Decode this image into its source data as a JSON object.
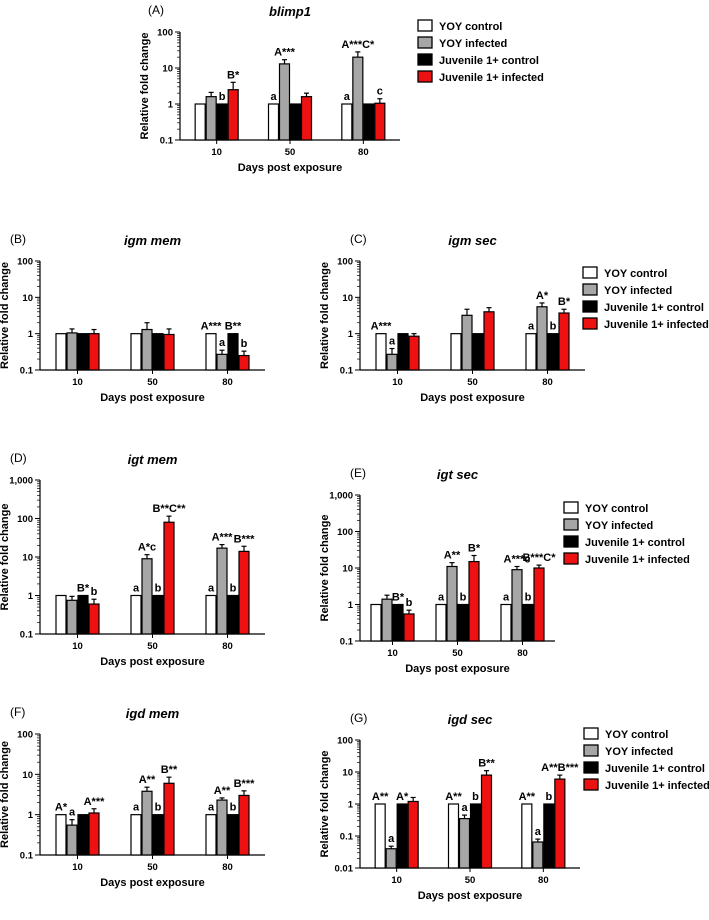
{
  "colors": {
    "yoy_control": "#ffffff",
    "yoy_infected": "#a6a6a6",
    "juv_control": "#000000",
    "juv_infected": "#ee1111"
  },
  "chart_data": [
    {
      "id": "A",
      "panel_label": "(A)",
      "type": "bar",
      "title": "blimp1",
      "xlabel": "Days post exposure",
      "ylabel": "Relative fold change",
      "yscale": "log",
      "ylim": [
        0.1,
        100
      ],
      "yticks": [
        "0.1",
        "1",
        "10",
        "100"
      ],
      "categories": [
        "10",
        "50",
        "80"
      ],
      "legend": true,
      "series": [
        {
          "name": "YOY control",
          "color_key": "yoy_control",
          "values": [
            1,
            1,
            1
          ],
          "errors": [
            0,
            0,
            0
          ]
        },
        {
          "name": "YOY infected",
          "color_key": "yoy_infected",
          "values": [
            1.6,
            13,
            20
          ],
          "errors": [
            0.5,
            4,
            8
          ]
        },
        {
          "name": "Juvenile 1+ control",
          "color_key": "juv_control",
          "values": [
            1,
            1,
            1
          ],
          "errors": [
            0,
            0,
            0
          ]
        },
        {
          "name": "Juvenile 1+ infected",
          "color_key": "juv_infected",
          "values": [
            2.5,
            1.6,
            1.05
          ],
          "errors": [
            1.5,
            0.4,
            0.35
          ]
        }
      ],
      "annotations": [
        {
          "text": "b",
          "category": 0,
          "series": 2
        },
        {
          "text": "B*",
          "category": 0,
          "series": 3
        },
        {
          "text": "a",
          "category": 1,
          "series": 0
        },
        {
          "text": "A***",
          "category": 1,
          "series": 1
        },
        {
          "text": "a",
          "category": 2,
          "series": 0
        },
        {
          "text": "A***C*",
          "category": 2,
          "series": 1
        },
        {
          "text": "c",
          "category": 2,
          "series": 3
        }
      ]
    },
    {
      "id": "B",
      "panel_label": "(B)",
      "type": "bar",
      "title": "igm mem",
      "xlabel": "Days post exposure",
      "ylabel": "Relative fold change",
      "yscale": "log",
      "ylim": [
        0.1,
        100
      ],
      "yticks": [
        "0.1",
        "1",
        "10",
        "100"
      ],
      "categories": [
        "10",
        "50",
        "80"
      ],
      "legend": false,
      "series": [
        {
          "name": "YOY control",
          "color_key": "yoy_control",
          "values": [
            1,
            1,
            1
          ],
          "errors": [
            0,
            0,
            0
          ]
        },
        {
          "name": "YOY infected",
          "color_key": "yoy_infected",
          "values": [
            1.05,
            1.3,
            0.27
          ],
          "errors": [
            0.3,
            0.7,
            0.08
          ]
        },
        {
          "name": "Juvenile 1+ control",
          "color_key": "juv_control",
          "values": [
            1,
            1,
            1
          ],
          "errors": [
            0,
            0,
            0
          ]
        },
        {
          "name": "Juvenile 1+ infected",
          "color_key": "juv_infected",
          "values": [
            1.0,
            0.95,
            0.25
          ],
          "errors": [
            0.3,
            0.4,
            0.08
          ]
        }
      ],
      "annotations": [
        {
          "text": "A***",
          "category": 2,
          "series": 0
        },
        {
          "text": "a",
          "category": 2,
          "series": 1
        },
        {
          "text": "B**",
          "category": 2,
          "series": 2
        },
        {
          "text": "b",
          "category": 2,
          "series": 3
        }
      ]
    },
    {
      "id": "C",
      "panel_label": "(C)",
      "type": "bar",
      "title": "igm sec",
      "xlabel": "Days post exposure",
      "ylabel": "Relative fold change",
      "yscale": "log",
      "ylim": [
        0.1,
        100
      ],
      "yticks": [
        "0.1",
        "1",
        "10",
        "100"
      ],
      "categories": [
        "10",
        "50",
        "80"
      ],
      "legend": true,
      "series": [
        {
          "name": "YOY control",
          "color_key": "yoy_control",
          "values": [
            1,
            1,
            1
          ],
          "errors": [
            0,
            0,
            0
          ]
        },
        {
          "name": "YOY infected",
          "color_key": "yoy_infected",
          "values": [
            0.27,
            3.2,
            5.5
          ],
          "errors": [
            0.12,
            1.5,
            1.5
          ]
        },
        {
          "name": "Juvenile 1+ control",
          "color_key": "juv_control",
          "values": [
            1,
            1,
            1
          ],
          "errors": [
            0,
            0,
            0
          ]
        },
        {
          "name": "Juvenile 1+ infected",
          "color_key": "juv_infected",
          "values": [
            0.85,
            4.0,
            3.7
          ],
          "errors": [
            0.15,
            1.2,
            1.0
          ]
        }
      ],
      "annotations": [
        {
          "text": "A***",
          "category": 0,
          "series": 0
        },
        {
          "text": "a",
          "category": 0,
          "series": 1
        },
        {
          "text": "a",
          "category": 2,
          "series": 0
        },
        {
          "text": "A*",
          "category": 2,
          "series": 1
        },
        {
          "text": "b",
          "category": 2,
          "series": 2
        },
        {
          "text": "B*",
          "category": 2,
          "series": 3
        }
      ]
    },
    {
      "id": "D",
      "panel_label": "(D)",
      "type": "bar",
      "title": "igt mem",
      "xlabel": "Days post exposure",
      "ylabel": "Relative fold change",
      "yscale": "log",
      "ylim": [
        0.1,
        1000
      ],
      "yticks": [
        "0.1",
        "1",
        "10",
        "100",
        "1,000"
      ],
      "categories": [
        "10",
        "50",
        "80"
      ],
      "legend": false,
      "series": [
        {
          "name": "YOY control",
          "color_key": "yoy_control",
          "values": [
            1,
            1,
            1
          ],
          "errors": [
            0,
            0,
            0
          ]
        },
        {
          "name": "YOY infected",
          "color_key": "yoy_infected",
          "values": [
            0.75,
            9,
            17
          ],
          "errors": [
            0.2,
            2.5,
            4
          ]
        },
        {
          "name": "Juvenile 1+ control",
          "color_key": "juv_control",
          "values": [
            1,
            1,
            1
          ],
          "errors": [
            0,
            0,
            0
          ]
        },
        {
          "name": "Juvenile 1+ infected",
          "color_key": "juv_infected",
          "values": [
            0.6,
            80,
            14
          ],
          "errors": [
            0.2,
            35,
            5
          ]
        }
      ],
      "annotations": [
        {
          "text": "B*",
          "category": 0,
          "series": 2
        },
        {
          "text": "b",
          "category": 0,
          "series": 3
        },
        {
          "text": "a",
          "category": 1,
          "series": 0
        },
        {
          "text": "A*c",
          "category": 1,
          "series": 1
        },
        {
          "text": "b",
          "category": 1,
          "series": 2
        },
        {
          "text": "B**C**",
          "category": 1,
          "series": 3
        },
        {
          "text": "a",
          "category": 2,
          "series": 0
        },
        {
          "text": "A***",
          "category": 2,
          "series": 1
        },
        {
          "text": "b",
          "category": 2,
          "series": 2
        },
        {
          "text": "B***",
          "category": 2,
          "series": 3
        }
      ]
    },
    {
      "id": "E",
      "panel_label": "(E)",
      "type": "bar",
      "title": "igt sec",
      "xlabel": "Days post exposure",
      "ylabel": "Relative fold change",
      "yscale": "log",
      "ylim": [
        0.1,
        1000
      ],
      "yticks": [
        "0.1",
        "1",
        "10",
        "100",
        "1,000"
      ],
      "categories": [
        "10",
        "50",
        "80"
      ],
      "legend": true,
      "series": [
        {
          "name": "YOY control",
          "color_key": "yoy_control",
          "values": [
            1,
            1,
            1
          ],
          "errors": [
            0,
            0,
            0
          ]
        },
        {
          "name": "YOY infected",
          "color_key": "yoy_infected",
          "values": [
            1.4,
            11,
            9
          ],
          "errors": [
            0.4,
            3,
            2
          ]
        },
        {
          "name": "Juvenile 1+ control",
          "color_key": "juv_control",
          "values": [
            1,
            1,
            1
          ],
          "errors": [
            0,
            0,
            0
          ]
        },
        {
          "name": "Juvenile 1+ infected",
          "color_key": "juv_infected",
          "values": [
            0.55,
            15,
            10
          ],
          "errors": [
            0.15,
            7,
            2
          ]
        }
      ],
      "annotations": [
        {
          "text": "B*",
          "category": 0,
          "series": 2
        },
        {
          "text": "b",
          "category": 0,
          "series": 3
        },
        {
          "text": "a",
          "category": 1,
          "series": 0
        },
        {
          "text": "A**",
          "category": 1,
          "series": 1
        },
        {
          "text": "b",
          "category": 1,
          "series": 2
        },
        {
          "text": "B*",
          "category": 1,
          "series": 3
        },
        {
          "text": "a",
          "category": 2,
          "series": 0
        },
        {
          "text": "A***c",
          "category": 2,
          "series": 1
        },
        {
          "text": "b",
          "category": 2,
          "series": 2
        },
        {
          "text": "B***C*",
          "category": 2,
          "series": 3
        }
      ]
    },
    {
      "id": "F",
      "panel_label": "(F)",
      "type": "bar",
      "title": "igd mem",
      "xlabel": "Days post exposure",
      "ylabel": "Relative fold change",
      "yscale": "log",
      "ylim": [
        0.1,
        100
      ],
      "yticks": [
        "0.1",
        "1",
        "10",
        "100"
      ],
      "categories": [
        "10",
        "50",
        "80"
      ],
      "legend": false,
      "series": [
        {
          "name": "YOY control",
          "color_key": "yoy_control",
          "values": [
            1,
            1,
            1
          ],
          "errors": [
            0,
            0,
            0
          ]
        },
        {
          "name": "YOY infected",
          "color_key": "yoy_infected",
          "values": [
            0.55,
            3.8,
            2.3
          ],
          "errors": [
            0.2,
            1.0,
            0.3
          ]
        },
        {
          "name": "Juvenile 1+ control",
          "color_key": "juv_control",
          "values": [
            1,
            1,
            1
          ],
          "errors": [
            0,
            0,
            0
          ]
        },
        {
          "name": "Juvenile 1+ infected",
          "color_key": "juv_infected",
          "values": [
            1.1,
            6,
            3.0
          ],
          "errors": [
            0.3,
            2.5,
            0.9
          ]
        }
      ],
      "annotations": [
        {
          "text": "A*",
          "category": 0,
          "series": 0
        },
        {
          "text": "a",
          "category": 0,
          "series": 1
        },
        {
          "text": "A***",
          "category": 0,
          "series": 3
        },
        {
          "text": "a",
          "category": 1,
          "series": 0
        },
        {
          "text": "A**",
          "category": 1,
          "series": 1
        },
        {
          "text": "b",
          "category": 1,
          "series": 2
        },
        {
          "text": "B**",
          "category": 1,
          "series": 3
        },
        {
          "text": "a",
          "category": 2,
          "series": 0
        },
        {
          "text": "A**",
          "category": 2,
          "series": 1
        },
        {
          "text": "b",
          "category": 2,
          "series": 2
        },
        {
          "text": "B***",
          "category": 2,
          "series": 3
        }
      ]
    },
    {
      "id": "G",
      "panel_label": "(G)",
      "type": "bar",
      "title": "igd sec",
      "xlabel": "Days post exposure",
      "ylabel": "Relative fold change",
      "yscale": "log",
      "ylim": [
        0.01,
        100
      ],
      "yticks": [
        "0.01",
        "0.1",
        "1",
        "10",
        "100"
      ],
      "categories": [
        "10",
        "50",
        "80"
      ],
      "legend": true,
      "series": [
        {
          "name": "YOY control",
          "color_key": "yoy_control",
          "values": [
            1,
            1,
            1
          ],
          "errors": [
            0,
            0,
            0
          ]
        },
        {
          "name": "YOY infected",
          "color_key": "yoy_infected",
          "values": [
            0.04,
            0.35,
            0.065
          ],
          "errors": [
            0.008,
            0.1,
            0.015
          ]
        },
        {
          "name": "Juvenile 1+ control",
          "color_key": "juv_control",
          "values": [
            1,
            1,
            1
          ],
          "errors": [
            0,
            0,
            0
          ]
        },
        {
          "name": "Juvenile 1+ infected",
          "color_key": "juv_infected",
          "values": [
            1.2,
            8,
            6
          ],
          "errors": [
            0.4,
            3,
            2
          ]
        }
      ],
      "annotations": [
        {
          "text": "A**",
          "category": 0,
          "series": 0
        },
        {
          "text": "a",
          "category": 0,
          "series": 1
        },
        {
          "text": "A*",
          "category": 0,
          "series": 2
        },
        {
          "text": "A**",
          "category": 1,
          "series": 0
        },
        {
          "text": "a",
          "category": 1,
          "series": 1
        },
        {
          "text": "b",
          "category": 1,
          "series": 2
        },
        {
          "text": "B**",
          "category": 1,
          "series": 3
        },
        {
          "text": "A**",
          "category": 2,
          "series": 0
        },
        {
          "text": "a",
          "category": 2,
          "series": 1
        },
        {
          "text": "b",
          "category": 2,
          "series": 2
        },
        {
          "text": "A**B***",
          "category": 2,
          "series": 3
        }
      ]
    }
  ]
}
